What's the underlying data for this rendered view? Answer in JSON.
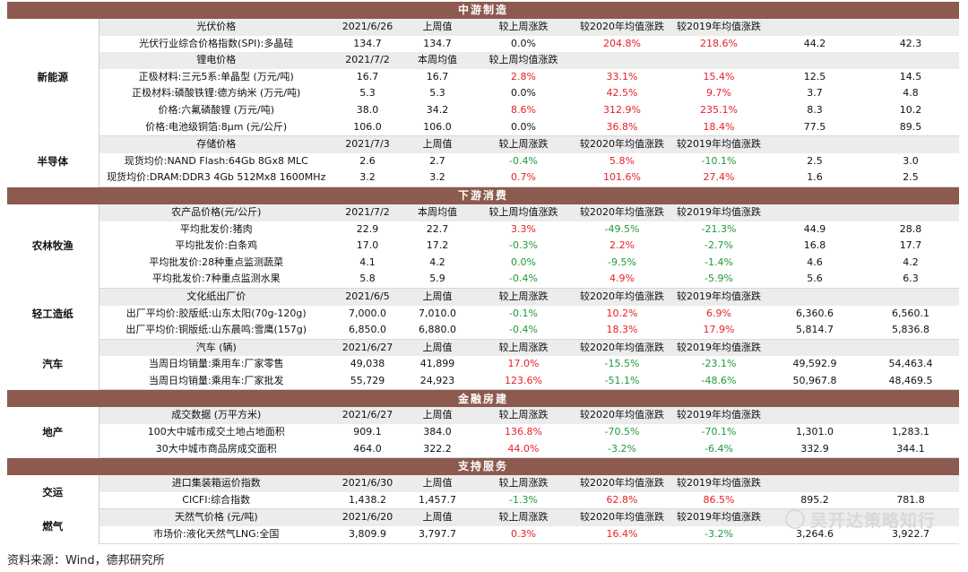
{
  "sections": [
    {
      "title": "中游制造",
      "groups": [
        {
          "category": "新能源",
          "rows": [
            {
              "type": "head",
              "cells": [
                "光伏价格",
                "2021/6/26",
                "上周值",
                "较上周涨跌",
                "较2020年均值涨跌",
                "较2019年均值涨跌",
                "",
                ""
              ]
            },
            {
              "type": "data",
              "cells": [
                "光伏行业综合价格指数(SPI):多晶硅",
                "134.7",
                "134.7",
                "0.0%",
                "204.8%",
                "218.6%",
                "44.2",
                "42.3"
              ],
              "colors": [
                "",
                "",
                "",
                "",
                "red",
                "red",
                "",
                ""
              ]
            },
            {
              "type": "head",
              "cells": [
                "锂电价格",
                "2021/7/2",
                "本周均值",
                "较上周均值涨跌",
                "",
                "",
                "",
                ""
              ]
            },
            {
              "type": "data",
              "cells": [
                "正极材料:三元5系:单晶型 (万元/吨)",
                "16.7",
                "16.7",
                "2.8%",
                "33.1%",
                "15.4%",
                "12.5",
                "14.5"
              ],
              "colors": [
                "",
                "",
                "",
                "red",
                "red",
                "red",
                "",
                ""
              ]
            },
            {
              "type": "data",
              "cells": [
                "正极材料:磷酸铁锂:德方纳米 (万元/吨)",
                "5.3",
                "5.3",
                "0.0%",
                "42.5%",
                "9.7%",
                "3.7",
                "4.8"
              ],
              "colors": [
                "",
                "",
                "",
                "",
                "red",
                "red",
                "",
                ""
              ]
            },
            {
              "type": "data",
              "cells": [
                "价格:六氟磷酸锂 (万元/吨)",
                "38.0",
                "34.2",
                "8.6%",
                "312.9%",
                "235.1%",
                "8.3",
                "10.2"
              ],
              "colors": [
                "",
                "",
                "",
                "red",
                "red",
                "red",
                "",
                ""
              ]
            },
            {
              "type": "data",
              "cells": [
                "价格:电池级铜箔:8μm (元/公斤)",
                "106.0",
                "106.0",
                "0.0%",
                "36.8%",
                "18.4%",
                "77.5",
                "89.5"
              ],
              "colors": [
                "",
                "",
                "",
                "",
                "red",
                "red",
                "",
                ""
              ]
            }
          ]
        },
        {
          "category": "半导体",
          "rows": [
            {
              "type": "head",
              "cells": [
                "存储价格",
                "2021/7/3",
                "上周值",
                "较上周涨跌",
                "较2020年均值涨跌",
                "较2019年均值涨跌",
                "",
                ""
              ]
            },
            {
              "type": "data",
              "cells": [
                "现货均价:NAND Flash:64Gb 8Gx8 MLC",
                "2.6",
                "2.7",
                "-0.4%",
                "5.8%",
                "-10.1%",
                "2.5",
                "3.0"
              ],
              "colors": [
                "",
                "",
                "",
                "green",
                "red",
                "green",
                "",
                ""
              ]
            },
            {
              "type": "data",
              "cells": [
                "现货均价:DRAM:DDR3 4Gb 512Mx8 1600MHz",
                "3.2",
                "3.2",
                "0.7%",
                "101.6%",
                "27.4%",
                "1.6",
                "2.5"
              ],
              "colors": [
                "",
                "",
                "",
                "red",
                "red",
                "red",
                "",
                ""
              ]
            }
          ]
        }
      ]
    },
    {
      "title": "下游消费",
      "groups": [
        {
          "category": "农林牧渔",
          "rows": [
            {
              "type": "head",
              "cells": [
                "农产品价格(元/公斤)",
                "2021/7/2",
                "本周均值",
                "较上周均值涨跌",
                "较2020年均值涨跌",
                "较2019年均值涨跌",
                "",
                ""
              ]
            },
            {
              "type": "data",
              "cells": [
                "平均批发价:猪肉",
                "22.9",
                "22.7",
                "3.3%",
                "-49.5%",
                "-21.3%",
                "44.9",
                "28.8"
              ],
              "colors": [
                "",
                "",
                "",
                "red",
                "green",
                "green",
                "",
                ""
              ]
            },
            {
              "type": "data",
              "cells": [
                "平均批发价:白条鸡",
                "17.0",
                "17.2",
                "-0.3%",
                "2.2%",
                "-2.7%",
                "16.8",
                "17.7"
              ],
              "colors": [
                "",
                "",
                "",
                "green",
                "red",
                "green",
                "",
                ""
              ]
            },
            {
              "type": "data",
              "cells": [
                "平均批发价:28种重点监测蔬菜",
                "4.1",
                "4.2",
                "0.0%",
                "-9.5%",
                "-1.4%",
                "4.6",
                "4.2"
              ],
              "colors": [
                "",
                "",
                "",
                "green",
                "green",
                "green",
                "",
                ""
              ]
            },
            {
              "type": "data",
              "cells": [
                "平均批发价:7种重点监测水果",
                "5.8",
                "5.9",
                "-0.4%",
                "4.9%",
                "-5.9%",
                "5.6",
                "6.3"
              ],
              "colors": [
                "",
                "",
                "",
                "green",
                "red",
                "green",
                "",
                ""
              ]
            }
          ]
        },
        {
          "category": "轻工造纸",
          "rows": [
            {
              "type": "head",
              "cells": [
                "文化纸出厂价",
                "2021/6/5",
                "上周值",
                "较上周涨跌",
                "较2020年均值涨跌",
                "较2019年均值涨跌",
                "",
                ""
              ]
            },
            {
              "type": "data",
              "cells": [
                "出厂平均价:胶版纸:山东太阳(70g-120g)",
                "7,000.0",
                "7,010.0",
                "-0.1%",
                "10.2%",
                "6.9%",
                "6,360.6",
                "6,560.1"
              ],
              "colors": [
                "",
                "",
                "",
                "green",
                "red",
                "red",
                "",
                ""
              ]
            },
            {
              "type": "data",
              "cells": [
                "出厂平均价:铜版纸:山东晨鸣:雪鹰(157g)",
                "6,850.0",
                "6,880.0",
                "-0.4%",
                "18.3%",
                "17.9%",
                "5,814.7",
                "5,836.8"
              ],
              "colors": [
                "",
                "",
                "",
                "green",
                "red",
                "red",
                "",
                ""
              ]
            }
          ]
        },
        {
          "category": "汽车",
          "rows": [
            {
              "type": "head",
              "cells": [
                "汽车 (辆)",
                "2021/6/27",
                "上周值",
                "较上周涨跌",
                "较2020年均值涨跌",
                "较2019年均值涨跌",
                "",
                ""
              ]
            },
            {
              "type": "data",
              "cells": [
                "当周日均销量:乘用车:厂家零售",
                "49,038",
                "41,899",
                "17.0%",
                "-15.5%",
                "-23.1%",
                "49,592.9",
                "54,463.4"
              ],
              "colors": [
                "",
                "",
                "",
                "red",
                "green",
                "green",
                "",
                ""
              ]
            },
            {
              "type": "data",
              "cells": [
                "当周日均销量:乘用车:厂家批发",
                "55,729",
                "24,923",
                "123.6%",
                "-51.1%",
                "-48.6%",
                "50,967.8",
                "48,469.5"
              ],
              "colors": [
                "",
                "",
                "",
                "red",
                "green",
                "green",
                "",
                ""
              ]
            }
          ]
        }
      ]
    },
    {
      "title": "金融房建",
      "groups": [
        {
          "category": "地产",
          "rows": [
            {
              "type": "head",
              "cells": [
                "成交数据 (万平方米)",
                "2021/6/27",
                "上周值",
                "较上周涨跌",
                "较2020年均值涨跌",
                "较2019年均值涨跌",
                "",
                ""
              ]
            },
            {
              "type": "data",
              "cells": [
                "100大中城市成交土地占地面积",
                "909.1",
                "384.0",
                "136.8%",
                "-70.5%",
                "-70.1%",
                "1,301.0",
                "1,283.1"
              ],
              "colors": [
                "",
                "",
                "",
                "red",
                "green",
                "green",
                "",
                ""
              ]
            },
            {
              "type": "data",
              "cells": [
                "30大中城市商品房成交面积",
                "464.0",
                "322.2",
                "44.0%",
                "-3.2%",
                "-6.4%",
                "332.9",
                "344.1"
              ],
              "colors": [
                "",
                "",
                "",
                "red",
                "green",
                "green",
                "",
                ""
              ]
            }
          ]
        }
      ]
    },
    {
      "title": "支持服务",
      "groups": [
        {
          "category": "交运",
          "rows": [
            {
              "type": "head",
              "cells": [
                "进口集装箱运价指数",
                "2021/6/30",
                "上周值",
                "较上周涨跌",
                "较2020年均值涨跌",
                "较2019年均值涨跌",
                "",
                ""
              ]
            },
            {
              "type": "data",
              "cells": [
                "CICFI:综合指数",
                "1,438.2",
                "1,457.7",
                "-1.3%",
                "62.8%",
                "86.5%",
                "895.2",
                "781.8"
              ],
              "colors": [
                "",
                "",
                "",
                "green",
                "red",
                "red",
                "",
                ""
              ]
            }
          ]
        },
        {
          "category": "燃气",
          "rows": [
            {
              "type": "head",
              "cells": [
                "天然气价格 (元/吨)",
                "2021/6/20",
                "上周值",
                "较上周涨跌",
                "较2020年均值涨跌",
                "较2019年均值涨跌",
                "",
                ""
              ]
            },
            {
              "type": "data",
              "cells": [
                "市场价:液化天然气LNG:全国",
                "3,809.9",
                "3,797.7",
                "0.3%",
                "16.4%",
                "-3.2%",
                "3,264.6",
                "3,922.7"
              ],
              "colors": [
                "",
                "",
                "",
                "red",
                "red",
                "green",
                "",
                ""
              ]
            }
          ]
        }
      ]
    }
  ],
  "watermark": "吴开达策略知行",
  "source": "资料来源：Wind，德邦研究所"
}
